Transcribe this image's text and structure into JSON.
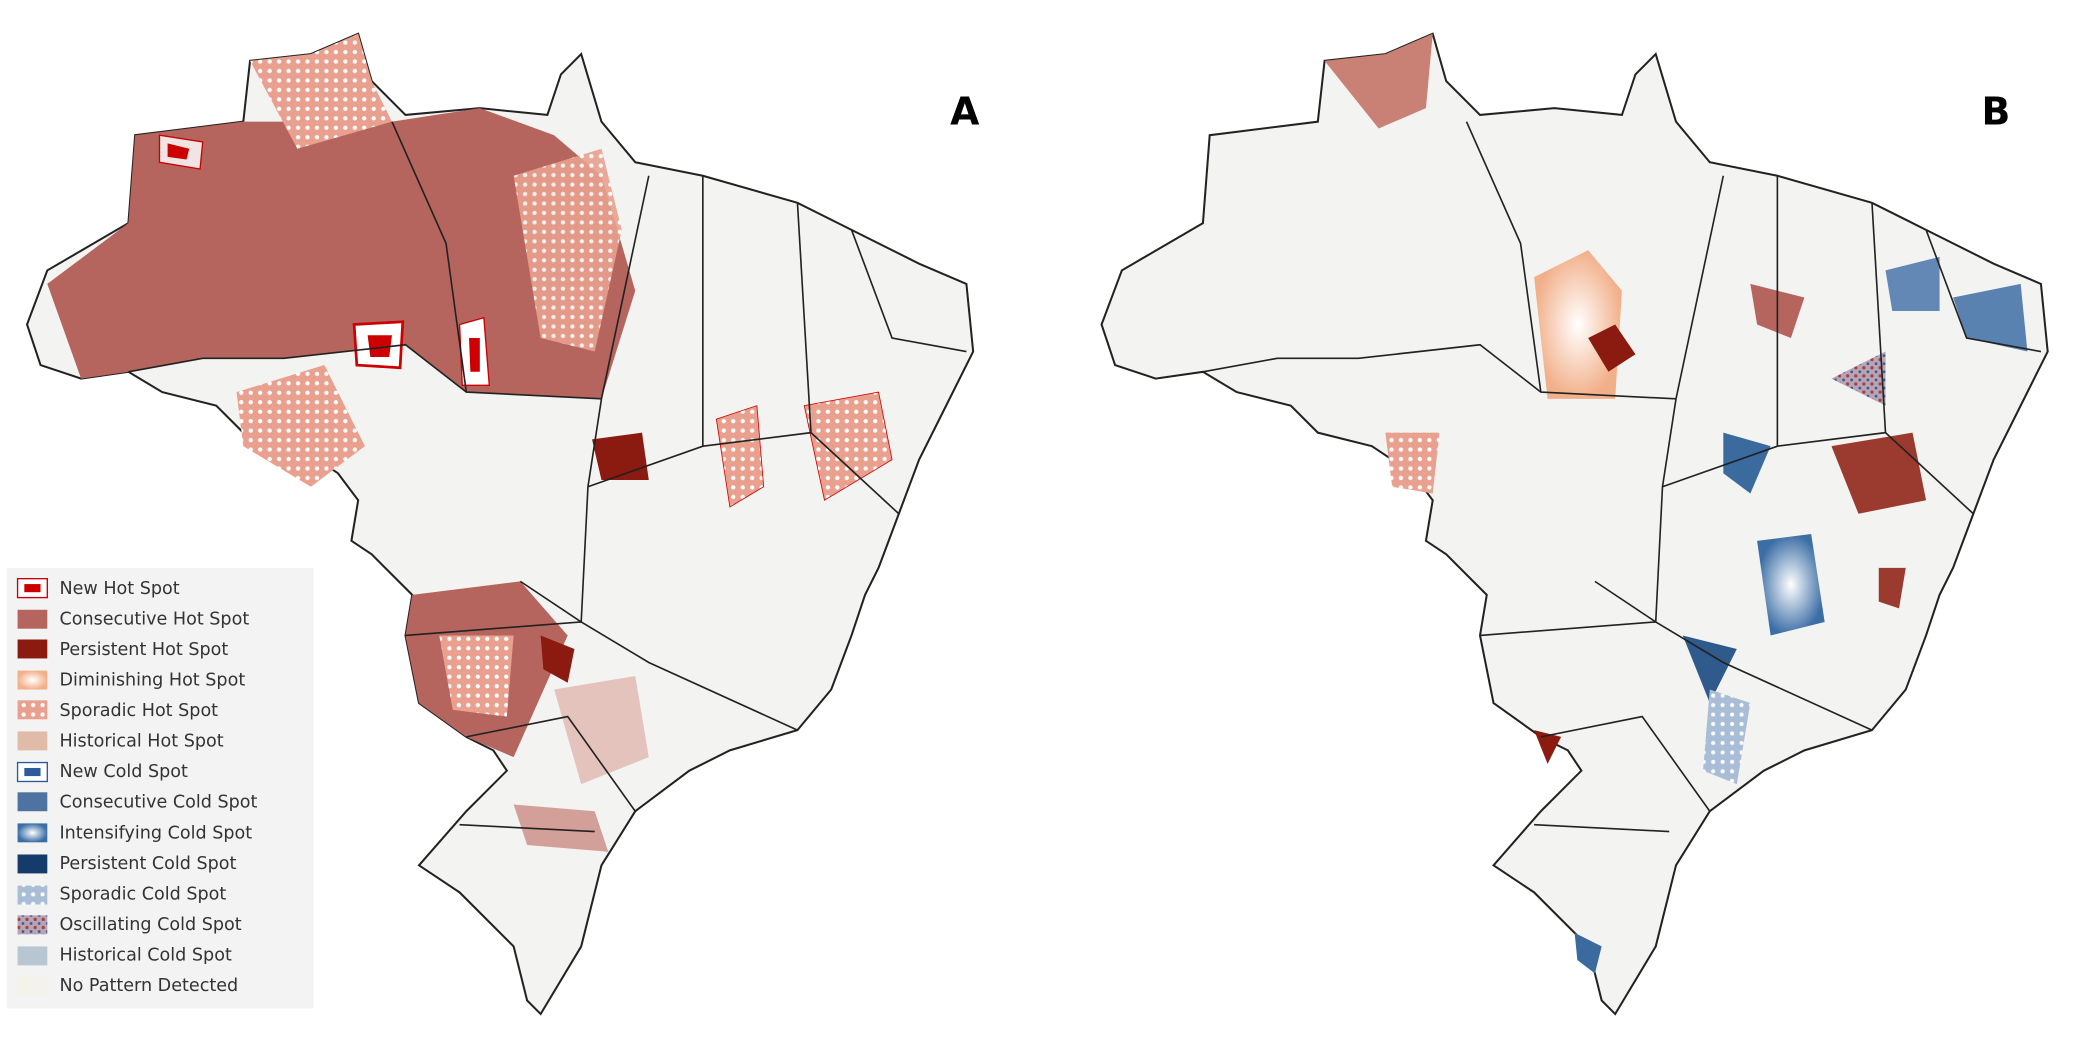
{
  "panels": [
    {
      "label": "A"
    },
    {
      "label": "B"
    }
  ],
  "legend": {
    "items": [
      "New Hot Spot",
      "Consecutive Hot Spot",
      "Persistent Hot Spot",
      "Diminishing Hot Spot",
      "Sporadic Hot Spot",
      "Historical Hot Spot",
      "New Cold Spot",
      "Consecutive Cold Spot",
      "Intensifying Cold Spot",
      "Persistent Cold Spot",
      "Sporadic Cold Spot",
      "Oscillating Cold Spot",
      "Historical Cold Spot",
      "No Pattern Detected"
    ]
  }
}
